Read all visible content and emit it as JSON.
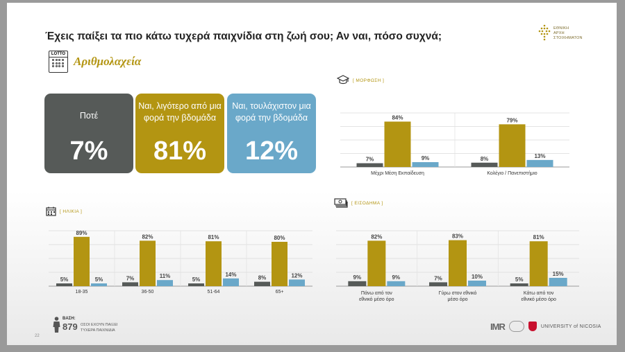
{
  "question": "Έχεις παίξει τα πιο κάτω τυχερά παιχνίδια στη ζωή σου; Αν ναι, πόσο συχνά;",
  "brand": {
    "name": "ΕΘΝΙΚΗ\nΑΡΧΗ\nΣΤΟΙΧΗΜΑΤΟΝ"
  },
  "game": {
    "icon_label": "LOTTO",
    "title": "Αριθμολαχεία"
  },
  "summary_cards": [
    {
      "label": "Ποτέ",
      "value": "7%",
      "color": "#565a58"
    },
    {
      "label": "Ναι, λιγότερο από μια φορά την βδομάδα",
      "value": "81%",
      "color": "#b39512"
    },
    {
      "label": "Ναι, τουλάχιστον μια φορά την βδομάδα",
      "value": "12%",
      "color": "#6aa8c9"
    }
  ],
  "sections": {
    "education": "[ ΜΟΡΦΩΣΗ ]",
    "age": "[ ΗΛΙΚΙΑ ]",
    "income": "[ ΕΙΣΟΔΗΜΑ ]"
  },
  "series_colors": [
    "#565a58",
    "#b39512",
    "#6aa8c9"
  ],
  "chart_data": [
    {
      "type": "bar",
      "id": "education",
      "categories": [
        "Μέχρι Μέση Εκπαίδευση",
        "Κολέγιο / Πανεπιστήμιο"
      ],
      "series": [
        {
          "values": [
            7,
            8
          ],
          "color": "#565a58"
        },
        {
          "values": [
            84,
            79
          ],
          "color": "#b39512"
        },
        {
          "values": [
            9,
            13
          ],
          "color": "#6aa8c9"
        }
      ],
      "ylim": [
        0,
        100
      ],
      "grid": true
    },
    {
      "type": "bar",
      "id": "age",
      "categories": [
        "18-35",
        "36-50",
        "51-64",
        "65+"
      ],
      "series": [
        {
          "values": [
            5,
            7,
            5,
            8
          ],
          "color": "#565a58"
        },
        {
          "values": [
            89,
            82,
            81,
            80
          ],
          "color": "#b39512"
        },
        {
          "values": [
            5,
            11,
            14,
            12
          ],
          "color": "#6aa8c9"
        }
      ],
      "ylim": [
        0,
        100
      ],
      "grid": true
    },
    {
      "type": "bar",
      "id": "income",
      "categories": [
        "Πάνω από τον εθνικό μέσο όρο",
        "Γύρω στον εθνικό μέσο όρο",
        "Κάτω από τον εθνικό μέσο όρο"
      ],
      "series": [
        {
          "values": [
            9,
            7,
            5
          ],
          "color": "#565a58"
        },
        {
          "values": [
            82,
            83,
            81
          ],
          "color": "#b39512"
        },
        {
          "values": [
            9,
            10,
            15
          ],
          "color": "#6aa8c9"
        }
      ],
      "ylim": [
        0,
        100
      ],
      "grid": true
    }
  ],
  "footer": {
    "base_label": "ΒΑΣΗ:",
    "base_value": "879",
    "base_desc": "ΟΣΟΙ ΕΧΟΥΝ ΠΑΙΞΕΙ\nΤΥΧΕΡΑ ΠΑΙΧΝΙΔΙΑ",
    "page": "22",
    "logo_imr": "IMR",
    "logo_university": "UNIVERSITY of NICOSIA"
  }
}
